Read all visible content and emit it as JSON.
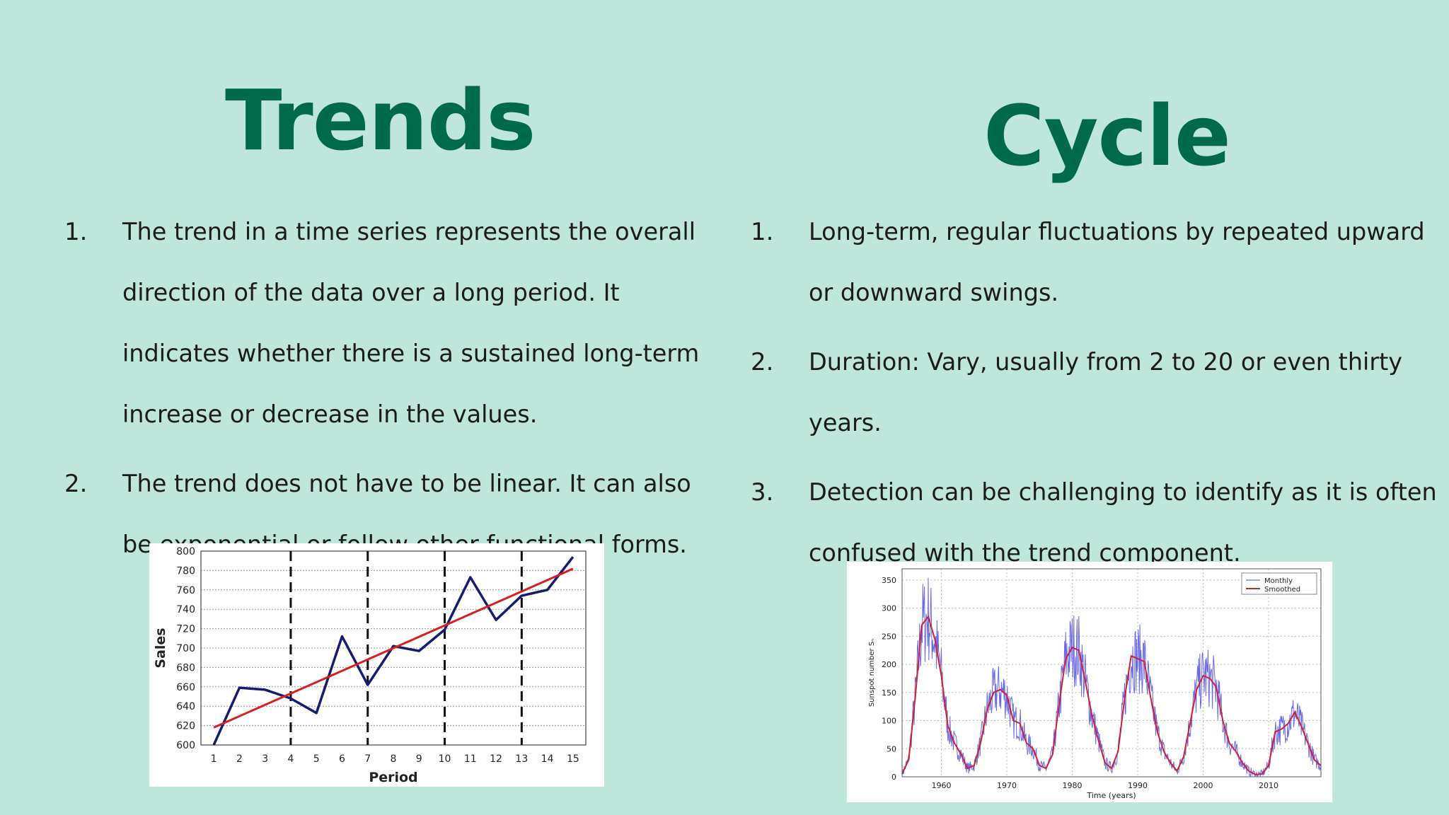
{
  "left": {
    "title": "Trends",
    "items": [
      {
        "num": "1.",
        "text": "The trend in a time series represents the overall direction of the data over a long period. It indicates whether there is a sustained long-term increase or decrease in the values."
      },
      {
        "num": "2.",
        "text": "The trend does not have to be linear. It can also be exponential or follow other functional forms."
      }
    ]
  },
  "right": {
    "title": "Cycle",
    "items": [
      {
        "num": "1.",
        "text": "Long-term, regular fluctuations by repeated upward or downward swings."
      },
      {
        "num": "2.",
        "text": "Duration: Vary, usually from 2 to 20 or even thirty years."
      },
      {
        "num": "3.",
        "text": "Detection can be challenging to identify as it is often confused with the trend component."
      }
    ]
  },
  "chart_data": [
    {
      "type": "line",
      "xlabel": "Period",
      "ylabel": "Sales",
      "x": [
        1,
        2,
        3,
        4,
        5,
        6,
        7,
        8,
        9,
        10,
        11,
        12,
        13,
        14,
        15
      ],
      "xlim": [
        0.5,
        15.5
      ],
      "ylim": [
        600,
        800
      ],
      "yticks": [
        600,
        620,
        640,
        660,
        680,
        700,
        720,
        740,
        760,
        780,
        800
      ],
      "grid": true,
      "vlines": [
        4,
        7,
        10,
        13
      ],
      "series": [
        {
          "values": [
            600,
            659,
            657,
            648,
            633,
            712,
            662,
            702,
            697,
            719,
            773,
            729,
            754,
            760,
            794
          ],
          "color": "#141c6e"
        },
        {
          "values": [
            618,
            629.7,
            641.4,
            653.1,
            664.8,
            676.5,
            688.2,
            699.9,
            711.6,
            723.3,
            735,
            746.7,
            758.4,
            770.1,
            781.8
          ],
          "color": "#d62020"
        }
      ]
    },
    {
      "type": "line",
      "xlabel": "Time (years)",
      "ylabel": "Sunspot number Sₙ",
      "xlim": [
        1954,
        2018
      ],
      "xticks": [
        1960,
        1970,
        1980,
        1990,
        2000,
        2010
      ],
      "ylim": [
        0,
        370
      ],
      "yticks": [
        0,
        50,
        100,
        150,
        200,
        250,
        300,
        350
      ],
      "grid": true,
      "legend_position": "top-right",
      "smoothed_points": [
        [
          1954,
          5
        ],
        [
          1955,
          30
        ],
        [
          1956,
          140
        ],
        [
          1957,
          270
        ],
        [
          1958,
          285
        ],
        [
          1959,
          245
        ],
        [
          1960,
          180
        ],
        [
          1961,
          90
        ],
        [
          1962,
          60
        ],
        [
          1963,
          40
        ],
        [
          1964,
          15
        ],
        [
          1965,
          20
        ],
        [
          1966,
          60
        ],
        [
          1967,
          120
        ],
        [
          1968,
          150
        ],
        [
          1969,
          155
        ],
        [
          1970,
          145
        ],
        [
          1971,
          100
        ],
        [
          1972,
          95
        ],
        [
          1973,
          60
        ],
        [
          1974,
          50
        ],
        [
          1975,
          20
        ],
        [
          1976,
          15
        ],
        [
          1977,
          40
        ],
        [
          1978,
          130
        ],
        [
          1979,
          210
        ],
        [
          1980,
          230
        ],
        [
          1981,
          225
        ],
        [
          1982,
          170
        ],
        [
          1983,
          110
        ],
        [
          1984,
          65
        ],
        [
          1985,
          25
        ],
        [
          1986,
          15
        ],
        [
          1987,
          45
        ],
        [
          1988,
          140
        ],
        [
          1989,
          215
        ],
        [
          1990,
          210
        ],
        [
          1991,
          205
        ],
        [
          1992,
          140
        ],
        [
          1993,
          80
        ],
        [
          1994,
          45
        ],
        [
          1995,
          25
        ],
        [
          1996,
          10
        ],
        [
          1997,
          35
        ],
        [
          1998,
          95
        ],
        [
          1999,
          155
        ],
        [
          2000,
          180
        ],
        [
          2001,
          175
        ],
        [
          2002,
          160
        ],
        [
          2003,
          100
        ],
        [
          2004,
          60
        ],
        [
          2005,
          45
        ],
        [
          2006,
          25
        ],
        [
          2007,
          10
        ],
        [
          2008,
          4
        ],
        [
          2009,
          5
        ],
        [
          2010,
          20
        ],
        [
          2011,
          80
        ],
        [
          2012,
          85
        ],
        [
          2013,
          95
        ],
        [
          2014,
          115
        ],
        [
          2015,
          90
        ],
        [
          2016,
          60
        ],
        [
          2017,
          30
        ],
        [
          2018,
          20
        ]
      ],
      "series": [
        {
          "name": "Monthly",
          "color": "#6a6ae8"
        },
        {
          "name": "Smoothed",
          "color": "#cc2233"
        }
      ]
    }
  ]
}
